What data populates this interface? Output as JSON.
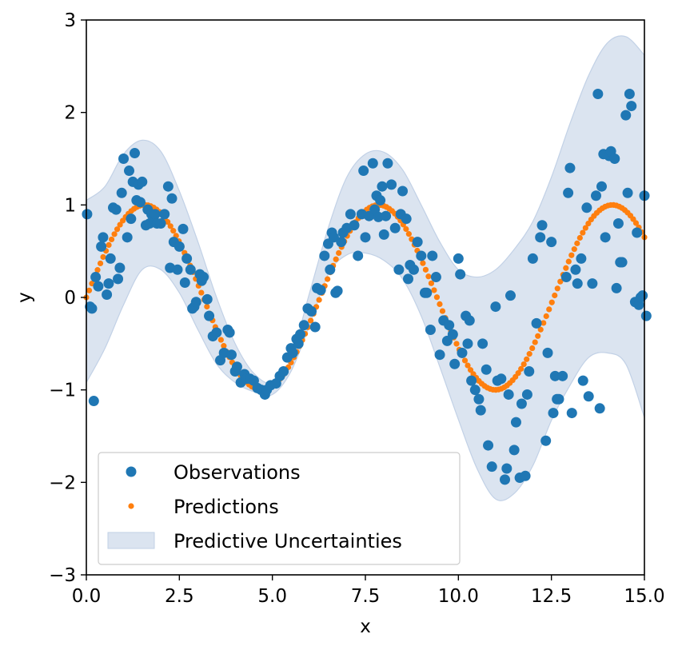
{
  "chart_data": {
    "type": "scatter",
    "title": "",
    "xlabel": "x",
    "ylabel": "y",
    "xlim": [
      0,
      15
    ],
    "ylim": [
      -3,
      3
    ],
    "xticks": [
      0,
      2.5,
      5,
      7.5,
      10,
      12.5,
      15
    ],
    "xtick_labels": [
      "0.0",
      "2.5",
      "5.0",
      "7.5",
      "10.0",
      "12.5",
      "15.0"
    ],
    "yticks": [
      -3,
      -2,
      -1,
      0,
      1,
      2,
      3
    ],
    "ytick_labels": [
      "−3",
      "−2",
      "−1",
      "0",
      "1",
      "2",
      "3"
    ],
    "grid": false,
    "legend": {
      "position": "lower-left",
      "entries": [
        "Observations",
        "Predictions",
        "Predictive Uncertainties"
      ]
    },
    "colors": {
      "observations": "#1f77b4",
      "predictions": "#ff7f0e",
      "uncertainty_fill": "#dbe4f0",
      "uncertainty_edge": "#c2d1e6"
    },
    "series": [
      {
        "name": "Observations",
        "kind": "scatter",
        "points": [
          [
            0.02,
            0.9
          ],
          [
            0.1,
            -0.1
          ],
          [
            0.15,
            -0.12
          ],
          [
            0.2,
            -1.12
          ],
          [
            0.25,
            0.22
          ],
          [
            0.32,
            0.12
          ],
          [
            0.4,
            0.55
          ],
          [
            0.45,
            0.65
          ],
          [
            0.55,
            0.03
          ],
          [
            0.6,
            0.15
          ],
          [
            0.65,
            0.42
          ],
          [
            0.72,
            0.97
          ],
          [
            0.8,
            0.95
          ],
          [
            0.85,
            0.2
          ],
          [
            0.9,
            0.32
          ],
          [
            0.95,
            1.13
          ],
          [
            1.0,
            1.5
          ],
          [
            1.1,
            0.65
          ],
          [
            1.15,
            1.37
          ],
          [
            1.2,
            0.85
          ],
          [
            1.25,
            1.25
          ],
          [
            1.3,
            1.56
          ],
          [
            1.35,
            1.05
          ],
          [
            1.4,
            1.22
          ],
          [
            1.45,
            1.03
          ],
          [
            1.5,
            1.25
          ],
          [
            1.6,
            0.78
          ],
          [
            1.65,
            0.95
          ],
          [
            1.7,
            0.8
          ],
          [
            1.75,
            0.9
          ],
          [
            1.8,
            0.85
          ],
          [
            1.85,
            0.9
          ],
          [
            1.9,
            0.8
          ],
          [
            2.0,
            0.8
          ],
          [
            2.1,
            0.9
          ],
          [
            2.2,
            1.2
          ],
          [
            2.25,
            0.32
          ],
          [
            2.3,
            1.07
          ],
          [
            2.35,
            0.6
          ],
          [
            2.45,
            0.3
          ],
          [
            2.5,
            0.55
          ],
          [
            2.6,
            0.74
          ],
          [
            2.65,
            0.16
          ],
          [
            2.7,
            0.42
          ],
          [
            2.8,
            0.3
          ],
          [
            2.85,
            -0.12
          ],
          [
            2.9,
            -0.1
          ],
          [
            2.95,
            -0.05
          ],
          [
            3.05,
            0.25
          ],
          [
            3.1,
            0.18
          ],
          [
            3.15,
            0.22
          ],
          [
            3.25,
            -0.02
          ],
          [
            3.3,
            -0.2
          ],
          [
            3.4,
            -0.42
          ],
          [
            3.5,
            -0.38
          ],
          [
            3.6,
            -0.68
          ],
          [
            3.7,
            -0.6
          ],
          [
            3.8,
            -0.35
          ],
          [
            3.85,
            -0.38
          ],
          [
            3.9,
            -0.62
          ],
          [
            4.0,
            -0.8
          ],
          [
            4.05,
            -0.75
          ],
          [
            4.15,
            -0.92
          ],
          [
            4.25,
            -0.83
          ],
          [
            4.3,
            -0.88
          ],
          [
            4.4,
            -0.88
          ],
          [
            4.5,
            -0.9
          ],
          [
            4.6,
            -0.98
          ],
          [
            4.7,
            -1.0
          ],
          [
            4.8,
            -1.05
          ],
          [
            4.85,
            -1.0
          ],
          [
            4.95,
            -0.95
          ],
          [
            5.1,
            -0.93
          ],
          [
            5.2,
            -0.85
          ],
          [
            5.3,
            -0.8
          ],
          [
            5.4,
            -0.65
          ],
          [
            5.5,
            -0.55
          ],
          [
            5.55,
            -0.6
          ],
          [
            5.65,
            -0.45
          ],
          [
            5.7,
            -0.5
          ],
          [
            5.75,
            -0.4
          ],
          [
            5.85,
            -0.3
          ],
          [
            5.95,
            -0.12
          ],
          [
            6.05,
            -0.15
          ],
          [
            6.15,
            -0.32
          ],
          [
            6.2,
            0.1
          ],
          [
            6.3,
            0.08
          ],
          [
            6.4,
            0.45
          ],
          [
            6.5,
            0.58
          ],
          [
            6.55,
            0.3
          ],
          [
            6.6,
            0.7
          ],
          [
            6.65,
            0.65
          ],
          [
            6.7,
            0.05
          ],
          [
            6.75,
            0.07
          ],
          [
            6.85,
            0.6
          ],
          [
            6.9,
            0.7
          ],
          [
            7.0,
            0.75
          ],
          [
            7.1,
            0.9
          ],
          [
            7.2,
            0.78
          ],
          [
            7.3,
            0.45
          ],
          [
            7.4,
            0.9
          ],
          [
            7.45,
            1.37
          ],
          [
            7.5,
            0.65
          ],
          [
            7.6,
            0.88
          ],
          [
            7.7,
            1.45
          ],
          [
            7.75,
            0.95
          ],
          [
            7.8,
            1.1
          ],
          [
            7.85,
            0.87
          ],
          [
            7.9,
            1.05
          ],
          [
            7.95,
            1.2
          ],
          [
            8.0,
            0.68
          ],
          [
            8.05,
            0.88
          ],
          [
            8.1,
            1.45
          ],
          [
            8.2,
            1.22
          ],
          [
            8.3,
            0.75
          ],
          [
            8.4,
            0.3
          ],
          [
            8.45,
            0.9
          ],
          [
            8.5,
            1.15
          ],
          [
            8.6,
            0.85
          ],
          [
            8.65,
            0.2
          ],
          [
            8.7,
            0.35
          ],
          [
            8.8,
            0.3
          ],
          [
            8.9,
            0.6
          ],
          [
            9.0,
            0.45
          ],
          [
            9.1,
            0.05
          ],
          [
            9.15,
            0.05
          ],
          [
            9.25,
            -0.35
          ],
          [
            9.3,
            0.45
          ],
          [
            9.4,
            0.22
          ],
          [
            9.5,
            -0.62
          ],
          [
            9.6,
            -0.25
          ],
          [
            9.7,
            -0.47
          ],
          [
            9.75,
            -0.3
          ],
          [
            9.85,
            -0.4
          ],
          [
            9.9,
            -0.72
          ],
          [
            10.0,
            0.42
          ],
          [
            10.05,
            0.25
          ],
          [
            10.1,
            -0.6
          ],
          [
            10.2,
            -0.2
          ],
          [
            10.25,
            -0.5
          ],
          [
            10.3,
            -0.25
          ],
          [
            10.35,
            -0.9
          ],
          [
            10.45,
            -1.0
          ],
          [
            10.55,
            -1.1
          ],
          [
            10.6,
            -1.22
          ],
          [
            10.65,
            -0.5
          ],
          [
            10.75,
            -0.78
          ],
          [
            10.8,
            -1.6
          ],
          [
            10.9,
            -1.83
          ],
          [
            11.0,
            -0.1
          ],
          [
            11.05,
            -0.9
          ],
          [
            11.15,
            -0.88
          ],
          [
            11.25,
            -1.97
          ],
          [
            11.3,
            -1.85
          ],
          [
            11.35,
            -1.05
          ],
          [
            11.4,
            0.02
          ],
          [
            11.5,
            -1.65
          ],
          [
            11.55,
            -1.35
          ],
          [
            11.65,
            -1.95
          ],
          [
            11.7,
            -1.15
          ],
          [
            11.8,
            -1.93
          ],
          [
            11.85,
            -1.05
          ],
          [
            11.9,
            -0.8
          ],
          [
            12.0,
            0.42
          ],
          [
            12.1,
            -0.28
          ],
          [
            12.2,
            0.65
          ],
          [
            12.25,
            0.78
          ],
          [
            12.35,
            -1.55
          ],
          [
            12.4,
            -0.6
          ],
          [
            12.5,
            0.6
          ],
          [
            12.55,
            -1.25
          ],
          [
            12.6,
            -0.85
          ],
          [
            12.65,
            -1.1
          ],
          [
            12.7,
            -1.1
          ],
          [
            12.8,
            -0.85
          ],
          [
            12.9,
            0.22
          ],
          [
            12.95,
            1.13
          ],
          [
            13.0,
            1.4
          ],
          [
            13.05,
            -1.25
          ],
          [
            13.15,
            0.3
          ],
          [
            13.2,
            0.15
          ],
          [
            13.3,
            0.42
          ],
          [
            13.35,
            -0.9
          ],
          [
            13.45,
            0.97
          ],
          [
            13.5,
            -1.07
          ],
          [
            13.6,
            0.15
          ],
          [
            13.7,
            1.1
          ],
          [
            13.75,
            2.2
          ],
          [
            13.8,
            -1.2
          ],
          [
            13.85,
            1.2
          ],
          [
            13.9,
            1.55
          ],
          [
            13.95,
            0.65
          ],
          [
            14.05,
            1.53
          ],
          [
            14.1,
            1.58
          ],
          [
            14.2,
            1.5
          ],
          [
            14.25,
            0.1
          ],
          [
            14.3,
            0.8
          ],
          [
            14.35,
            0.38
          ],
          [
            14.4,
            0.38
          ],
          [
            14.5,
            1.97
          ],
          [
            14.55,
            1.13
          ],
          [
            14.6,
            2.2
          ],
          [
            14.65,
            2.07
          ],
          [
            14.75,
            -0.05
          ],
          [
            14.8,
            0.7
          ],
          [
            14.85,
            -0.08
          ],
          [
            14.9,
            0.0
          ],
          [
            14.95,
            0.02
          ],
          [
            15.0,
            1.1
          ],
          [
            15.05,
            -0.2
          ]
        ]
      },
      {
        "name": "Predictions",
        "kind": "dotted-line",
        "function": "sin(x)",
        "x_start": 0,
        "x_end": 15,
        "num_points": 200
      },
      {
        "name": "Predictive Uncertainties",
        "kind": "band",
        "x": [
          0,
          0.5,
          1,
          1.5,
          2,
          2.5,
          3,
          3.5,
          4,
          4.5,
          5,
          5.5,
          6,
          6.5,
          7,
          7.5,
          8,
          8.5,
          9,
          9.5,
          10,
          10.5,
          11,
          11.5,
          12,
          12.5,
          13,
          13.5,
          14,
          14.5,
          15
        ],
        "upper": [
          1.05,
          1.2,
          1.55,
          1.7,
          1.58,
          1.15,
          0.6,
          0.0,
          -0.5,
          -0.82,
          -0.92,
          -0.65,
          0.05,
          0.75,
          1.3,
          1.55,
          1.57,
          1.38,
          1.0,
          0.6,
          0.3,
          0.22,
          0.3,
          0.52,
          0.82,
          1.3,
          1.88,
          2.4,
          2.75,
          2.82,
          2.62
        ],
        "lower": [
          -0.92,
          -0.55,
          -0.08,
          0.3,
          0.3,
          0.05,
          -0.35,
          -0.72,
          -0.92,
          -1.02,
          -1.05,
          -0.8,
          -0.3,
          0.25,
          0.46,
          0.48,
          0.4,
          0.2,
          -0.2,
          -0.75,
          -1.32,
          -1.85,
          -2.18,
          -2.12,
          -1.82,
          -1.33,
          -0.95,
          -0.65,
          -0.6,
          -0.72,
          -1.3
        ]
      }
    ]
  }
}
